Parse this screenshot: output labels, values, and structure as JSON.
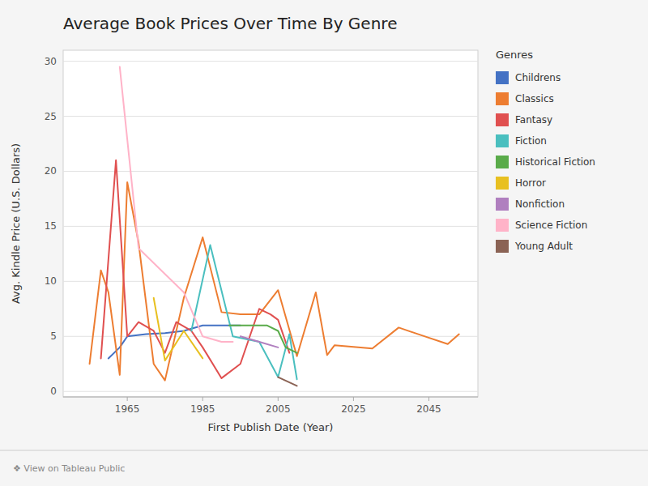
{
  "chart_data": {
    "type": "line",
    "title": "Average Book Prices Over Time By Genre",
    "xlabel": "First Publish Date (Year)",
    "ylabel": "Avg. Kindle Price (U.S. Dollars)",
    "legend_title": "Genres",
    "footer": "❖ View on Tableau Public",
    "xlim": [
      1948,
      2058
    ],
    "ylim": [
      -0.5,
      31
    ],
    "xticks": [
      1965,
      1985,
      2005,
      2025,
      2045
    ],
    "yticks": [
      0,
      5,
      10,
      15,
      20,
      25,
      30
    ],
    "grid": true,
    "legend": "right",
    "series": [
      {
        "name": "Childrens",
        "color": "#4472C4",
        "x": [
          1960,
          1963,
          1965,
          1970,
          1975,
          1980,
          1985,
          1990,
          1995
        ],
        "values": [
          3.0,
          4.0,
          5.0,
          5.2,
          5.3,
          5.5,
          6.0,
          6.0,
          6.0
        ]
      },
      {
        "name": "Classics",
        "color": "#ED7D31",
        "x": [
          1955,
          1958,
          1960,
          1963,
          1965,
          1968,
          1972,
          1975,
          1980,
          1985,
          1990,
          1995,
          2000,
          2005,
          2010,
          2015,
          2018,
          2020,
          2030,
          2037,
          2043,
          2050,
          2053
        ],
        "values": [
          2.5,
          11.0,
          9.0,
          1.5,
          19.0,
          13.5,
          2.5,
          1.0,
          8.5,
          14.0,
          7.2,
          7.0,
          7.0,
          9.2,
          3.2,
          9.0,
          3.3,
          4.2,
          3.9,
          5.8,
          5.1,
          4.3,
          5.2
        ]
      },
      {
        "name": "Fantasy",
        "color": "#E05050",
        "x": [
          1958,
          1962,
          1965,
          1968,
          1972,
          1975,
          1978,
          1982,
          1985,
          1990,
          1995,
          2000,
          2003,
          2005,
          2008
        ],
        "values": [
          3.0,
          21.0,
          5.0,
          6.3,
          5.5,
          3.5,
          6.3,
          5.5,
          4.0,
          1.2,
          2.5,
          7.5,
          7.0,
          6.5,
          3.5
        ]
      },
      {
        "name": "Fiction",
        "color": "#4ABFBF",
        "x": [
          1982,
          1987,
          1993,
          2000,
          2005,
          2008,
          2010
        ],
        "values": [
          5.5,
          13.3,
          5.0,
          4.5,
          1.3,
          5.2,
          1.1
        ]
      },
      {
        "name": "Historical Fiction",
        "color": "#5AAB4A",
        "x": [
          1992,
          1997,
          2002,
          2005,
          2007,
          2010
        ],
        "values": [
          6.0,
          6.0,
          6.0,
          5.5,
          4.0,
          3.5
        ]
      },
      {
        "name": "Horror",
        "color": "#E8C020",
        "x": [
          1972,
          1975,
          1980,
          1985
        ],
        "values": [
          8.5,
          2.8,
          5.5,
          3.0
        ]
      },
      {
        "name": "Nonfiction",
        "color": "#B07FBF",
        "x": [
          1995,
          2000,
          2005
        ],
        "values": [
          5.0,
          4.5,
          4.0
        ]
      },
      {
        "name": "Science Fiction",
        "color": "#FFB3C8",
        "x": [
          1963,
          1968,
          1980,
          1985,
          1990,
          1993
        ],
        "values": [
          29.5,
          13.0,
          9.0,
          5.0,
          4.5,
          4.5
        ]
      },
      {
        "name": "Young Adult",
        "color": "#8B6355",
        "x": [
          2005,
          2010
        ],
        "values": [
          1.3,
          0.5
        ]
      }
    ]
  }
}
